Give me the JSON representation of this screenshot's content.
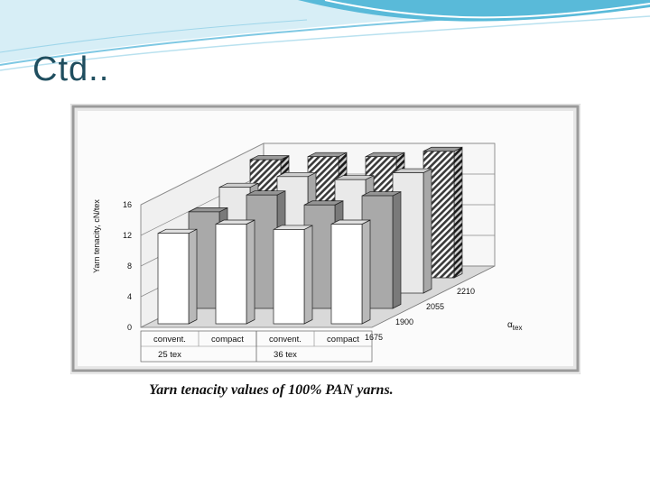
{
  "slide": {
    "title": "Ctd..",
    "caption": "Yarn tenacity values of 100% PAN yarns."
  },
  "chart_data": {
    "type": "bar",
    "style": "3d-grouped",
    "xlabel": "",
    "ylabel": "Yarn tenacity, cN/tex",
    "depth_axis_label": "αtex",
    "ylim": [
      0,
      16
    ],
    "yticks": [
      "0",
      "4",
      "8",
      "12",
      "16"
    ],
    "categories": [
      {
        "label": "convent.",
        "group": "25 tex"
      },
      {
        "label": "compact",
        "group": "25 tex"
      },
      {
        "label": "convent.",
        "group": "36 tex"
      },
      {
        "label": "compact",
        "group": "36 tex"
      }
    ],
    "groups": [
      "25 tex",
      "36 tex"
    ],
    "series": [
      {
        "name": "1675",
        "values": [
          11.8,
          13.0,
          12.3,
          13.0
        ]
      },
      {
        "name": "1900",
        "values": [
          12.6,
          14.8,
          13.5,
          14.7
        ]
      },
      {
        "name": "2055",
        "values": [
          13.8,
          15.2,
          14.8,
          15.7
        ]
      },
      {
        "name": "2210",
        "values": [
          15.4,
          15.8,
          15.8,
          16.5
        ]
      }
    ],
    "colors": {
      "1675": "#ffffff",
      "1900": "#a9a9a9",
      "2055": "#e9e9e9",
      "2210": "#4a4a4a"
    }
  }
}
